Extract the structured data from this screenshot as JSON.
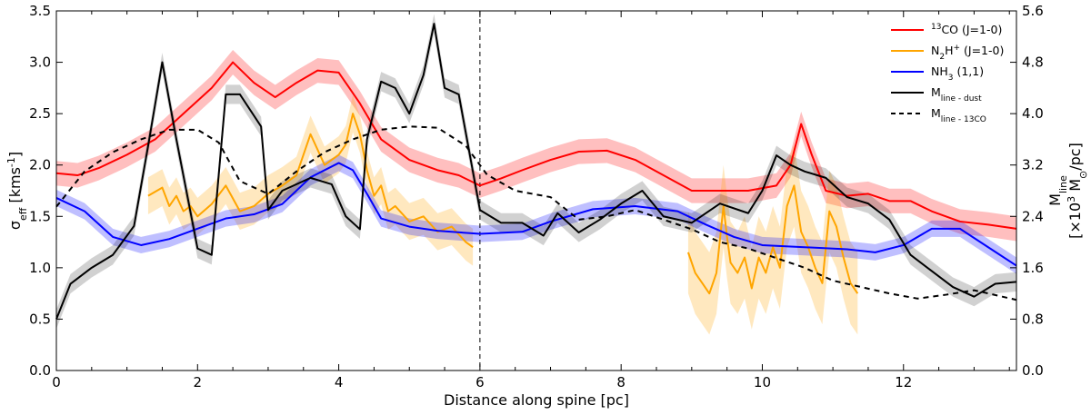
{
  "chart_data": {
    "type": "line",
    "xlabel": "Distance along spine [pc]",
    "ylabel_left": {
      "text": "σ",
      "sub": "eff",
      "unit": " [kms",
      "unit_sup": "-1",
      "unit_end": "]"
    },
    "ylabel_right_line1": {
      "text": "M",
      "sub": "line"
    },
    "ylabel_right_line2": {
      "pre": "[×10",
      "sup": "3",
      "mid": " M",
      "sub": "⊙",
      "post": "/pc]"
    },
    "xlim": [
      0,
      13.6
    ],
    "ylim_left": [
      0,
      3.5
    ],
    "ylim_right": [
      0,
      5.6
    ],
    "x_ticks": [
      0,
      2,
      4,
      6,
      8,
      10,
      12
    ],
    "x_tick_labels": [
      "0",
      "2",
      "4",
      "6",
      "8",
      "10",
      "12"
    ],
    "y_ticks_left": [
      0,
      0.5,
      1.0,
      1.5,
      2.0,
      2.5,
      3.0,
      3.5
    ],
    "y_tick_labels_left": [
      "0.0",
      "0.5",
      "1.0",
      "1.5",
      "2.0",
      "2.5",
      "3.0",
      "3.5"
    ],
    "y_ticks_right": [
      0,
      0.8,
      1.6,
      2.4,
      3.2,
      4.0,
      4.8,
      5.6
    ],
    "y_tick_labels_right": [
      "0.0",
      "0.8",
      "1.6",
      "2.4",
      "3.2",
      "4.0",
      "4.8",
      "5.6"
    ],
    "vline_x": 6.0,
    "legend_position": "top-right",
    "legend": [
      {
        "key": "co",
        "pre": "",
        "sup": "13",
        "main": "CO (J=1-0)",
        "sub": "",
        "color": "#ff0000",
        "dashed": false
      },
      {
        "key": "n2h",
        "pre": "",
        "sup": "",
        "main": "N",
        "sub": "2",
        "main2": "H",
        "sup2": "+",
        "tail": " (J=1-0)",
        "color": "#ffa500",
        "dashed": false
      },
      {
        "key": "nh3",
        "pre": "",
        "sup": "",
        "main": "NH",
        "sub": "3",
        "tail": " (1,1)",
        "color": "#0000ff",
        "dashed": false
      },
      {
        "key": "mdust",
        "pre": "",
        "sup": "",
        "main": "M",
        "sub": "line - dust",
        "color": "#000000",
        "dashed": false
      },
      {
        "key": "m13co",
        "pre": "",
        "sup": "",
        "main": "M",
        "sub": "line - 13CO",
        "color": "#000000",
        "dashed": true
      }
    ],
    "series": [
      {
        "name": "13CO (J=1-0)",
        "axis": "left",
        "color": "#ff0000",
        "band_alpha": 0.25,
        "band_width": 0.12,
        "x": [
          0,
          0.3,
          0.6,
          1.0,
          1.4,
          1.8,
          2.2,
          2.5,
          2.8,
          3.1,
          3.4,
          3.7,
          4.0,
          4.3,
          4.6,
          5.0,
          5.4,
          5.7,
          6.0,
          6.3,
          6.6,
          7.0,
          7.4,
          7.8,
          8.2,
          8.6,
          9.0,
          9.4,
          9.8,
          10.2,
          10.4,
          10.55,
          10.7,
          10.9,
          11.2,
          11.5,
          11.8,
          12.1,
          12.4,
          12.8,
          13.2,
          13.6
        ],
        "y": [
          1.92,
          1.9,
          1.97,
          2.1,
          2.25,
          2.5,
          2.75,
          3.0,
          2.8,
          2.66,
          2.8,
          2.92,
          2.9,
          2.6,
          2.25,
          2.05,
          1.95,
          1.9,
          1.8,
          1.87,
          1.95,
          2.05,
          2.13,
          2.14,
          2.05,
          1.9,
          1.75,
          1.75,
          1.75,
          1.8,
          2.0,
          2.4,
          2.1,
          1.75,
          1.7,
          1.72,
          1.65,
          1.65,
          1.55,
          1.45,
          1.42,
          1.38
        ]
      },
      {
        "name": "N2H+ (J=1-0) segment 1",
        "axis": "left",
        "color": "#ffa500",
        "band_alpha": 0.25,
        "band_width": 0.18,
        "x": [
          1.3,
          1.5,
          1.6,
          1.7,
          1.8,
          1.9,
          2.0,
          2.2,
          2.4,
          2.6,
          2.8,
          3.0,
          3.2,
          3.4,
          3.6,
          3.8,
          4.0,
          4.1,
          4.2,
          4.3,
          4.4,
          4.5,
          4.6,
          4.7,
          4.8,
          5.0,
          5.2,
          5.4,
          5.6,
          5.8,
          5.9
        ],
        "y": [
          1.7,
          1.78,
          1.6,
          1.7,
          1.55,
          1.6,
          1.5,
          1.62,
          1.8,
          1.55,
          1.6,
          1.72,
          1.8,
          1.9,
          2.3,
          2.0,
          2.1,
          2.2,
          2.5,
          2.3,
          1.95,
          1.7,
          1.8,
          1.55,
          1.6,
          1.45,
          1.5,
          1.35,
          1.4,
          1.25,
          1.2
        ]
      },
      {
        "name": "N2H+ (J=1-0) segment 2",
        "axis": "left",
        "color": "#ffa500",
        "band_alpha": 0.25,
        "band_width": 0.4,
        "x": [
          8.95,
          9.05,
          9.15,
          9.25,
          9.35,
          9.45,
          9.5,
          9.55,
          9.65,
          9.75,
          9.85,
          9.95,
          10.05,
          10.15,
          10.25,
          10.35,
          10.45,
          10.55,
          10.65,
          10.75,
          10.85,
          10.95,
          11.05,
          11.15,
          11.25,
          11.35
        ],
        "y": [
          1.15,
          0.95,
          0.85,
          0.75,
          0.95,
          1.6,
          1.3,
          1.05,
          0.95,
          1.1,
          0.8,
          1.1,
          0.95,
          1.2,
          1.0,
          1.6,
          1.8,
          1.35,
          1.2,
          1.0,
          0.85,
          1.55,
          1.4,
          1.1,
          0.85,
          0.75
        ]
      },
      {
        "name": "NH3 (1,1)",
        "axis": "left",
        "color": "#0000ff",
        "band_alpha": 0.25,
        "band_width": 0.08,
        "x": [
          0,
          0.4,
          0.8,
          1.2,
          1.6,
          2.0,
          2.4,
          2.8,
          3.2,
          3.6,
          4.0,
          4.2,
          4.4,
          4.6,
          5.0,
          5.4,
          6.0,
          6.6,
          7.0,
          7.6,
          8.2,
          8.8,
          9.2,
          9.6,
          10.0,
          10.6,
          11.2,
          11.6,
          12.0,
          12.4,
          12.8,
          13.2,
          13.6
        ],
        "y": [
          1.68,
          1.55,
          1.3,
          1.22,
          1.28,
          1.38,
          1.48,
          1.52,
          1.62,
          1.88,
          2.02,
          1.95,
          1.72,
          1.48,
          1.4,
          1.36,
          1.33,
          1.35,
          1.45,
          1.57,
          1.6,
          1.55,
          1.42,
          1.3,
          1.22,
          1.2,
          1.18,
          1.15,
          1.22,
          1.38,
          1.38,
          1.2,
          1.02
        ]
      },
      {
        "name": "M line-dust",
        "axis": "right",
        "color": "#000000",
        "band_alpha": 0.18,
        "band_width": 0.15,
        "x": [
          0,
          0.2,
          0.5,
          0.8,
          1.1,
          1.3,
          1.5,
          1.7,
          2.0,
          2.2,
          2.4,
          2.6,
          2.9,
          3.0,
          3.2,
          3.6,
          3.9,
          4.1,
          4.3,
          4.4,
          4.6,
          4.8,
          5.0,
          5.2,
          5.35,
          5.5,
          5.7,
          6.0,
          6.3,
          6.6,
          6.9,
          7.1,
          7.4,
          7.7,
          8.0,
          8.3,
          8.6,
          9.0,
          9.4,
          9.8,
          10.0,
          10.2,
          10.4,
          10.6,
          10.9,
          11.2,
          11.5,
          11.8,
          12.1,
          12.4,
          12.7,
          13.0,
          13.3,
          13.6
        ],
        "y": [
          0.8,
          1.35,
          1.6,
          1.8,
          2.25,
          3.5,
          4.8,
          3.6,
          1.9,
          1.8,
          4.3,
          4.3,
          3.8,
          2.5,
          2.8,
          3.0,
          2.9,
          2.4,
          2.2,
          3.6,
          4.5,
          4.4,
          4.0,
          4.6,
          5.4,
          4.4,
          4.3,
          2.5,
          2.3,
          2.3,
          2.1,
          2.45,
          2.15,
          2.35,
          2.6,
          2.8,
          2.4,
          2.3,
          2.6,
          2.45,
          2.8,
          3.35,
          3.2,
          3.1,
          3.0,
          2.7,
          2.6,
          2.35,
          1.8,
          1.55,
          1.3,
          1.15,
          1.35,
          1.38
        ]
      },
      {
        "name": "M line-13CO",
        "axis": "right",
        "color": "#000000",
        "dashed": true,
        "x": [
          0,
          0.4,
          0.8,
          1.2,
          1.6,
          2.0,
          2.3,
          2.6,
          3.0,
          3.4,
          3.8,
          4.2,
          4.6,
          5.0,
          5.4,
          5.8,
          6.1,
          6.5,
          7.0,
          7.4,
          7.8,
          8.2,
          8.6,
          9.0,
          9.4,
          9.8,
          10.2,
          10.6,
          11.0,
          11.4,
          11.8,
          12.2,
          12.6,
          13.0,
          13.4,
          13.6
        ],
        "y": [
          2.55,
          3.1,
          3.4,
          3.6,
          3.75,
          3.75,
          3.55,
          2.95,
          2.75,
          3.1,
          3.4,
          3.6,
          3.75,
          3.8,
          3.78,
          3.5,
          3.05,
          2.8,
          2.7,
          2.35,
          2.4,
          2.5,
          2.35,
          2.2,
          2.0,
          1.9,
          1.75,
          1.6,
          1.4,
          1.3,
          1.2,
          1.12,
          1.18,
          1.25,
          1.15,
          1.1
        ]
      }
    ]
  }
}
